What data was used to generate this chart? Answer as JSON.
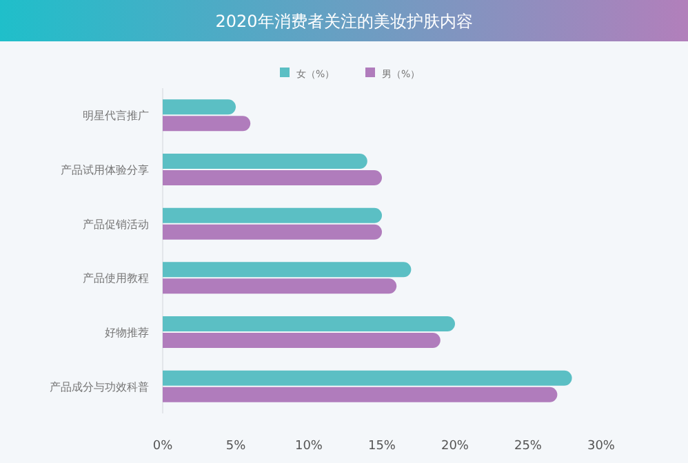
{
  "chart_data": {
    "type": "bar",
    "orientation": "horizontal",
    "title": "2020年消费者关注的美妆护肤内容",
    "categories": [
      "明星代言推广",
      "产品试用体验分享",
      "产品促销活动",
      "产品使用教程",
      "好物推荐",
      "产品成分与功效科普"
    ],
    "series": [
      {
        "name": "女（%）",
        "color": "#5bbfc4",
        "values": [
          5,
          14,
          15,
          17,
          20,
          28
        ]
      },
      {
        "name": "男（%）",
        "color": "#b07cbc",
        "values": [
          6,
          15,
          15,
          16,
          19,
          27
        ]
      }
    ],
    "xlim": [
      0,
      30
    ],
    "xticks": [
      {
        "value": 0,
        "label": "0%"
      },
      {
        "value": 5,
        "label": "5%"
      },
      {
        "value": 10,
        "label": "10%"
      },
      {
        "value": 15,
        "label": "15%"
      },
      {
        "value": 20,
        "label": "20%"
      },
      {
        "value": 25,
        "label": "25%"
      },
      {
        "value": 30,
        "label": "30%"
      }
    ],
    "grid": false,
    "legend": "top"
  }
}
